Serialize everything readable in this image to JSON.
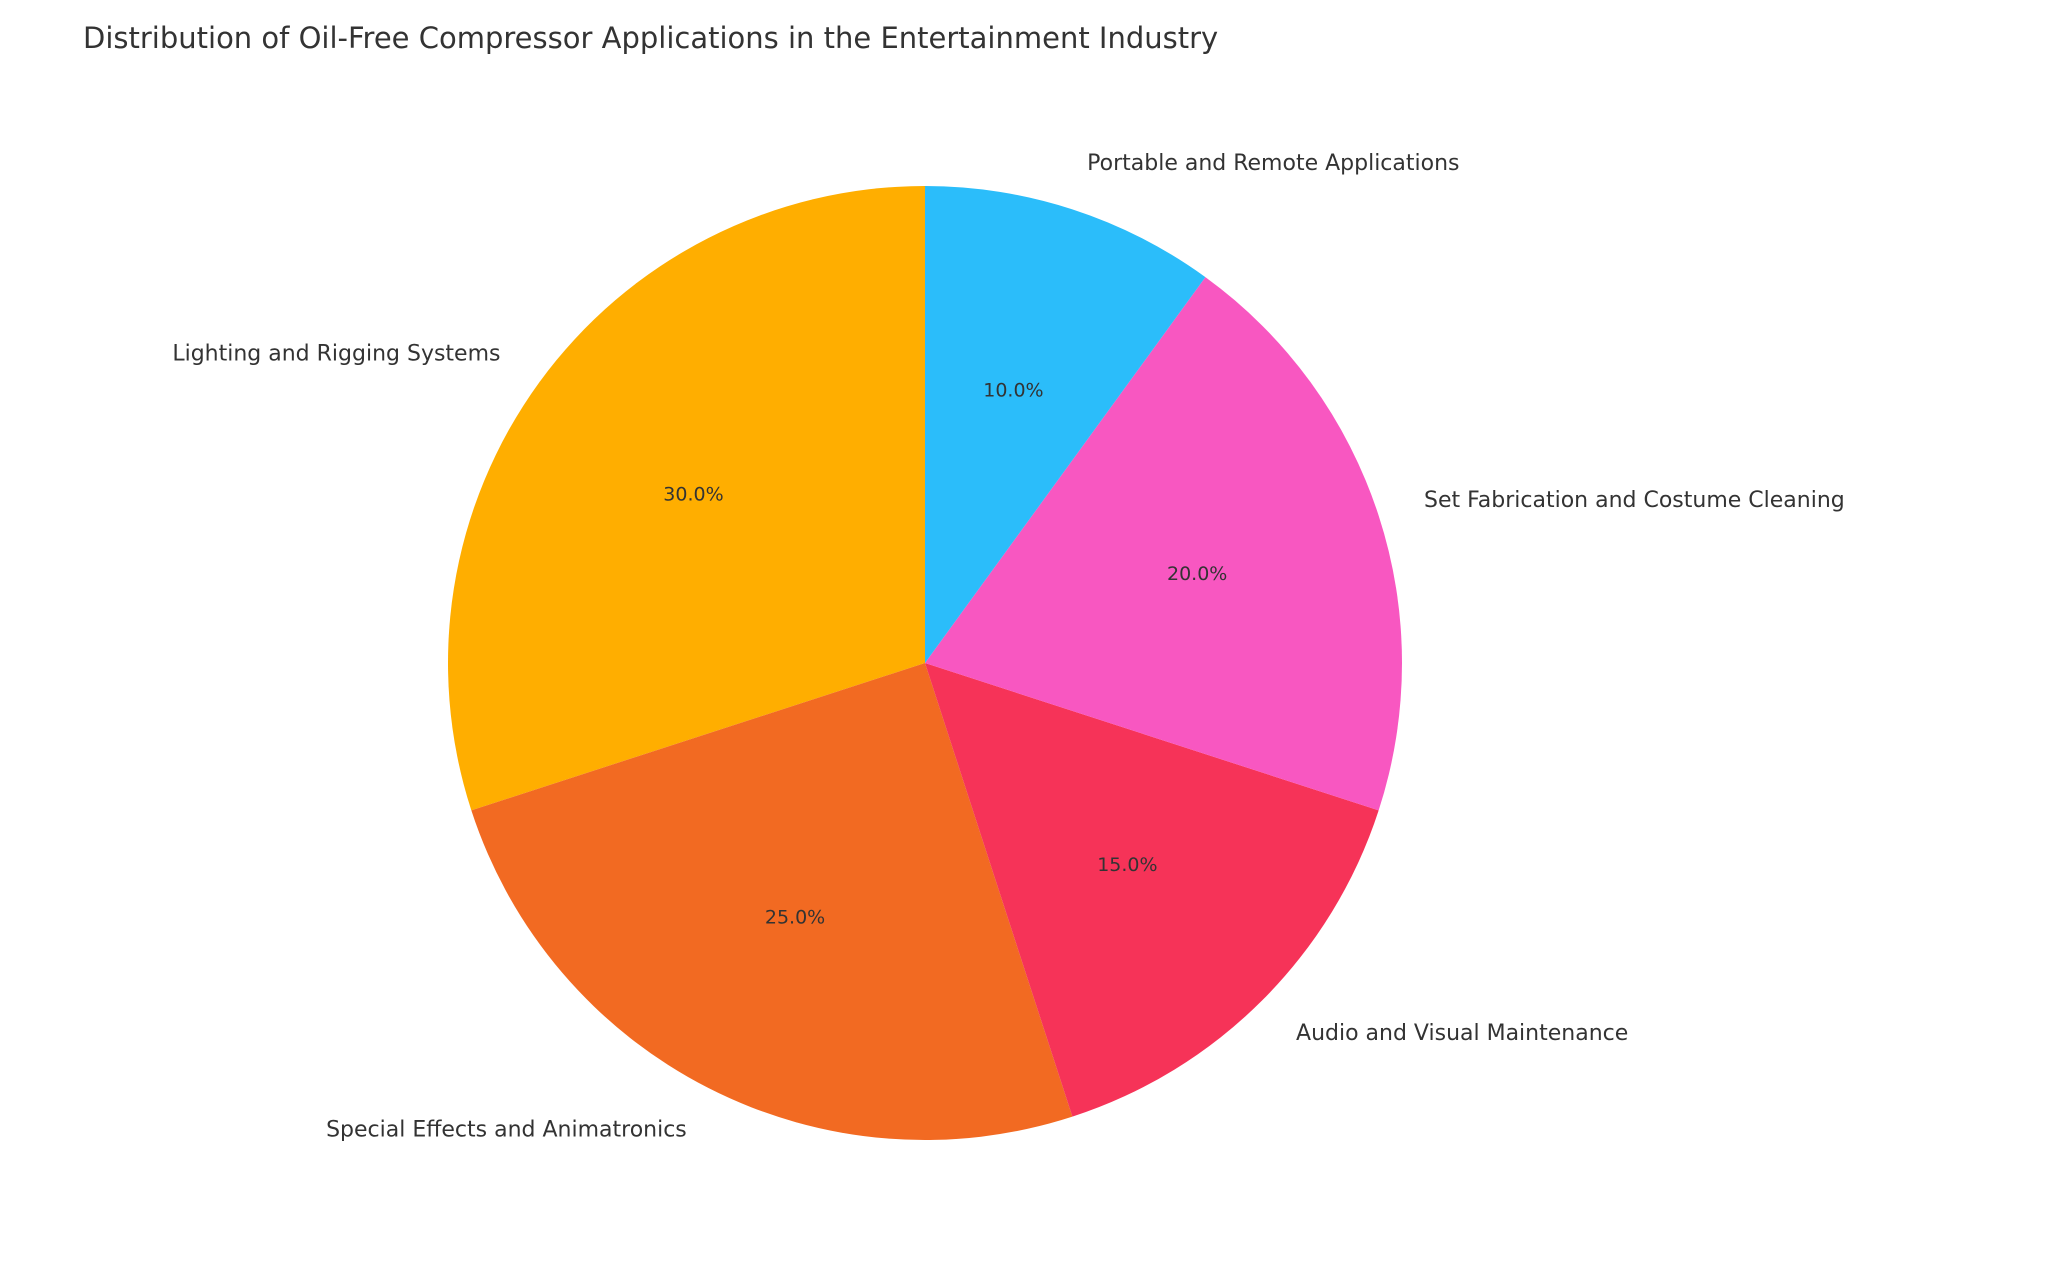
{
  "chart_data": {
    "type": "pie",
    "title": "Distribution of Oil-Free Compressor Applications in the Entertainment Industry",
    "categories": [
      "Lighting and Rigging Systems",
      "Special Effects and Animatronics",
      "Audio and Visual Maintenance",
      "Set Fabrication and Costume Cleaning",
      "Portable and Remote Applications"
    ],
    "values": [
      30,
      25,
      15,
      20,
      10
    ],
    "value_labels": [
      "30.0%",
      "25.0%",
      "15.0%",
      "20.0%",
      "10.0%"
    ],
    "colors": [
      "#FFAE00",
      "#F26A22",
      "#F63358",
      "#F857C1",
      "#2BBDFA"
    ],
    "startangle": 90,
    "counterclock": true
  }
}
